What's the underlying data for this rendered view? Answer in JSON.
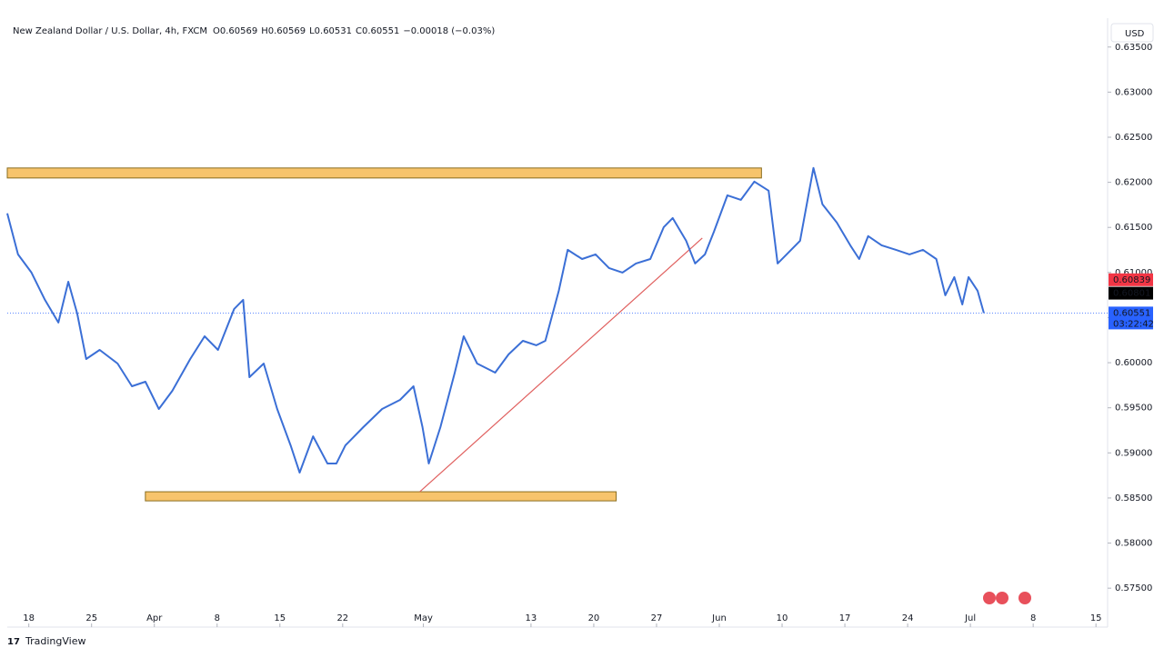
{
  "chart_data": {
    "type": "line",
    "title": "New Zealand Dollar / U.S. Dollar, 4h, FXCM",
    "ohlc": [
      {
        "label": "O",
        "value": 0.60569
      },
      {
        "label": "H",
        "value": 0.60569
      },
      {
        "label": "L",
        "value": 0.60531
      },
      {
        "label": "C",
        "value": 0.60551
      }
    ],
    "change": "−0.00018 (−0.03%)",
    "currency": "USD",
    "color": "#3b6fd6",
    "x": [
      -2.4,
      -1.2,
      0.3,
      1.8,
      3.3,
      4.4,
      5.4,
      6.4,
      7.9,
      9.9,
      11.5,
      13,
      14.5,
      16,
      18,
      19.6,
      21.1,
      22.9,
      23.9,
      24.6,
      26.2,
      27.7,
      29.2,
      30.2,
      31.7,
      33.3,
      34.3,
      35.3,
      37.3,
      39.4,
      41.4,
      42.9,
      43.9,
      44.6,
      45.9,
      47.5,
      48.5,
      50,
      52,
      53.5,
      55.1,
      56.6,
      57.6,
      59.1,
      60.1,
      61.7,
      63.2,
      64.7,
      66.2,
      67.7,
      69.3,
      70.8,
      71.8,
      73.3,
      74.3,
      75.4,
      76.4,
      77.9,
      79.4,
      80.9,
      82.5,
      83.5,
      84.5,
      86,
      87.5,
      88.5,
      90.1,
      91.6,
      92.6,
      93.6,
      95.1,
      96.7,
      98.2,
      99.7,
      101.2,
      102.2,
      103.2,
      104.1,
      104.8,
      105.8,
      106.5
    ],
    "values": [
      0.61655,
      0.61201,
      0.60999,
      0.60697,
      0.60445,
      0.60898,
      0.60545,
      0.60041,
      0.60142,
      0.59991,
      0.59739,
      0.59789,
      0.59487,
      0.59688,
      0.60041,
      0.60293,
      0.60142,
      0.60596,
      0.60697,
      0.5984,
      0.59991,
      0.59487,
      0.59083,
      0.58781,
      0.59184,
      0.58882,
      0.58882,
      0.59083,
      0.59285,
      0.59487,
      0.59588,
      0.59739,
      0.59285,
      0.58882,
      0.59285,
      0.5989,
      0.60293,
      0.59991,
      0.5989,
      0.60092,
      0.60243,
      0.60193,
      0.60243,
      0.60798,
      0.61251,
      0.6115,
      0.61201,
      0.6105,
      0.60999,
      0.611,
      0.6115,
      0.61503,
      0.61604,
      0.61352,
      0.611,
      0.61201,
      0.61453,
      0.61856,
      0.61806,
      0.62008,
      0.61907,
      0.611,
      0.61201,
      0.61352,
      0.62159,
      0.61756,
      0.61554,
      0.61302,
      0.6115,
      0.61403,
      0.61302,
      0.61251,
      0.61201,
      0.61251,
      0.6115,
      0.60747,
      0.60949,
      0.60646,
      0.60949,
      0.60798,
      0.60551
    ],
    "xlim": [
      -2.4,
      120.3
    ],
    "ylim": [
      0.5729,
      0.6382
    ],
    "xticks": [
      {
        "value": 0,
        "label": "18"
      },
      {
        "value": 7,
        "label": "25"
      },
      {
        "value": 14,
        "label": "Apr"
      },
      {
        "value": 21,
        "label": "8"
      },
      {
        "value": 28,
        "label": "15"
      },
      {
        "value": 35,
        "label": "22"
      },
      {
        "value": 44,
        "label": "May"
      },
      {
        "value": 56,
        "label": "13"
      },
      {
        "value": 63,
        "label": "20"
      },
      {
        "value": 70,
        "label": "27"
      },
      {
        "value": 77,
        "label": "Jun"
      },
      {
        "value": 84,
        "label": "10"
      },
      {
        "value": 91,
        "label": "17"
      },
      {
        "value": 98,
        "label": "24"
      },
      {
        "value": 105,
        "label": "Jul"
      },
      {
        "value": 112,
        "label": "8"
      },
      {
        "value": 119,
        "label": "15"
      }
    ],
    "yticks": [
      {
        "value": 0.575,
        "label": "0.57500"
      },
      {
        "value": 0.58,
        "label": "0.58000"
      },
      {
        "value": 0.585,
        "label": "0.58500"
      },
      {
        "value": 0.59,
        "label": "0.59000"
      },
      {
        "value": 0.595,
        "label": "0.59500"
      },
      {
        "value": 0.6,
        "label": "0.60000"
      },
      {
        "value": 0.605,
        "label": "0.60500"
      },
      {
        "value": 0.61,
        "label": "0.61000"
      },
      {
        "value": 0.615,
        "label": "0.61500"
      },
      {
        "value": 0.62,
        "label": "0.62000"
      },
      {
        "value": 0.625,
        "label": "0.62500"
      },
      {
        "value": 0.63,
        "label": "0.63000"
      },
      {
        "value": 0.635,
        "label": "0.63500"
      }
    ],
    "zones": [
      {
        "x": [
          -2.4,
          81.7
        ],
        "y": [
          0.62048,
          0.62159
        ],
        "color": "#f7c46c"
      },
      {
        "x": [
          13,
          65.5
        ],
        "y": [
          0.58468,
          0.58569
        ],
        "color": "#f7c46c"
      }
    ],
    "trendline": {
      "x": [
        43.6,
        75.1
      ],
      "y": [
        0.58569,
        0.61382
      ],
      "color": "#e0605f"
    },
    "price_tags": [
      {
        "value": 0.60839,
        "color": "#f23645"
      },
      {
        "value": 0.60801,
        "color": "#000000"
      },
      {
        "value": 0.60551,
        "color": "#2962ff",
        "countdown": "03:22:42"
      }
    ],
    "brand": "TradingView"
  }
}
